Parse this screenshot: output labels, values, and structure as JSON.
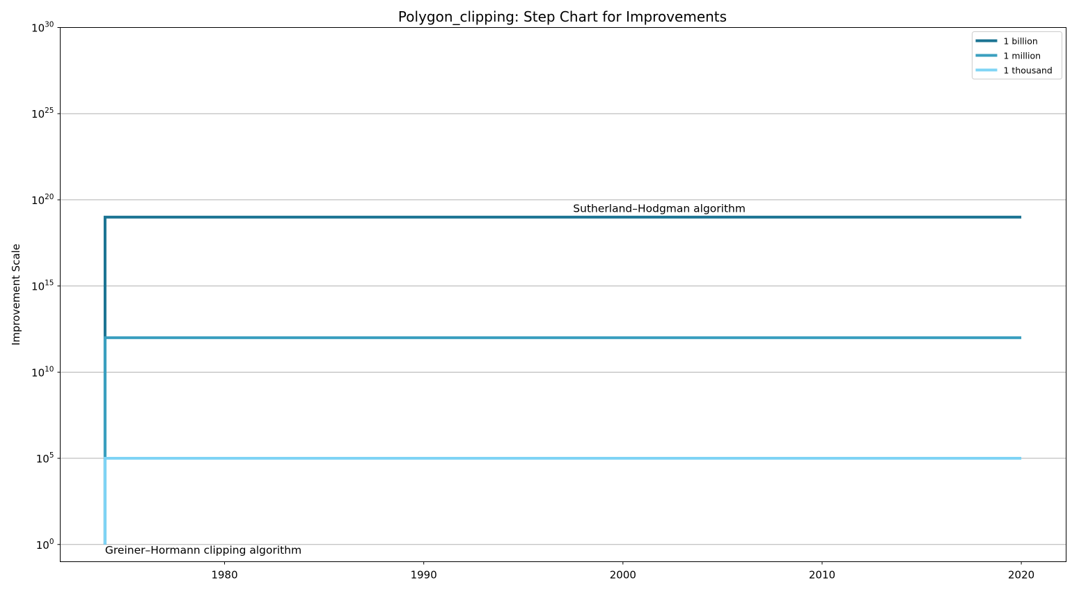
{
  "chart_data": {
    "type": "line",
    "title": "Polygon_clipping: Step Chart for Improvements",
    "xlabel": "",
    "ylabel": "Improvement Scale",
    "x_scale": "linear",
    "y_scale": "log",
    "xlim": [
      1971.75,
      2022.25
    ],
    "ylim": [
      0.1,
      1e+30
    ],
    "x_ticks": [
      1980,
      1990,
      2000,
      2010,
      2020
    ],
    "x_tick_labels": [
      "1980",
      "1990",
      "2000",
      "2010",
      "2020"
    ],
    "y_ticks": [
      1,
      100000.0,
      10000000000.0,
      1000000000000000.0,
      1e+20,
      1e+25,
      1e+30
    ],
    "y_tick_labels": [
      {
        "base": "10",
        "exp": "0"
      },
      {
        "base": "10",
        "exp": "5"
      },
      {
        "base": "10",
        "exp": "10"
      },
      {
        "base": "10",
        "exp": "15"
      },
      {
        "base": "10",
        "exp": "20"
      },
      {
        "base": "10",
        "exp": "25"
      },
      {
        "base": "10",
        "exp": "30"
      }
    ],
    "grid": "horizontal",
    "legend_position": "top-right",
    "series": [
      {
        "name": "1 billion",
        "color": "#1a7392",
        "points": [
          [
            1974,
            1
          ],
          [
            1974,
            1000000000000.0
          ],
          [
            1974,
            1e+19
          ],
          [
            2020,
            1e+19
          ]
        ]
      },
      {
        "name": "1 million",
        "color": "#3a9fbf",
        "points": [
          [
            1974,
            1
          ],
          [
            1974,
            100000.0
          ],
          [
            1974,
            1000000000000.0
          ],
          [
            2020,
            1000000000000.0
          ]
        ]
      },
      {
        "name": "1 thousand",
        "color": "#7fd4f5",
        "points": [
          [
            1974,
            1
          ],
          [
            1974,
            100000.0
          ],
          [
            2020,
            100000.0
          ]
        ]
      }
    ],
    "annotations": [
      {
        "text": "Sutherland–Hodgman algorithm",
        "x": 1997.5,
        "y": 1e+19
      },
      {
        "text": "Greiner–Hormann clipping algorithm",
        "x": 1974,
        "y": 1
      }
    ]
  }
}
